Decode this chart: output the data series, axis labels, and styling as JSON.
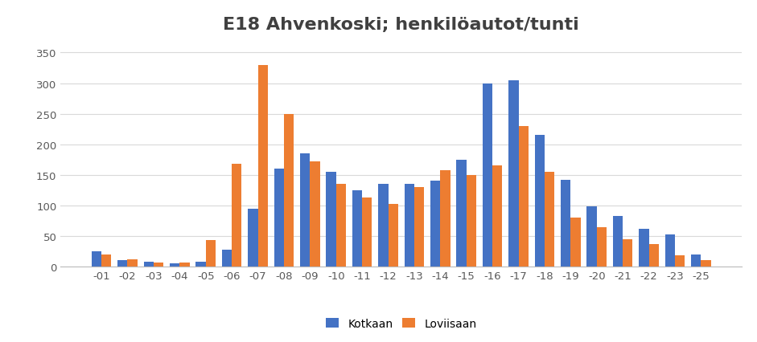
{
  "categories": [
    "-01",
    "-02",
    "-03",
    "-04",
    "-05",
    "-06",
    "-07",
    "-08",
    "-09",
    "-10",
    "-11",
    "-12",
    "-13",
    "-14",
    "-15",
    "-16",
    "-17",
    "-18",
    "-19",
    "-20",
    "-21",
    "-22",
    "-23",
    "-25"
  ],
  "kotkaan": [
    25,
    10,
    8,
    5,
    8,
    28,
    95,
    160,
    185,
    155,
    125,
    135,
    135,
    140,
    175,
    300,
    305,
    215,
    142,
    98,
    83,
    62,
    52,
    20
  ],
  "lovisaan": [
    20,
    12,
    7,
    6,
    43,
    168,
    330,
    250,
    172,
    135,
    113,
    102,
    130,
    157,
    150,
    165,
    230,
    155,
    80,
    65,
    45,
    37,
    18,
    10
  ],
  "kotkaan_color": "#4472c4",
  "lovisaan_color": "#ed7d31",
  "title": "E18 Ahvenkoski; henkilöautot/tunti",
  "title_fontsize": 16,
  "ylim": [
    0,
    370
  ],
  "yticks": [
    0,
    50,
    100,
    150,
    200,
    250,
    300,
    350
  ],
  "legend_labels": [
    "Kotkaan",
    "Loviisaan"
  ],
  "bar_width": 0.38,
  "background_color": "#ffffff",
  "grid_color": "#d9d9d9"
}
